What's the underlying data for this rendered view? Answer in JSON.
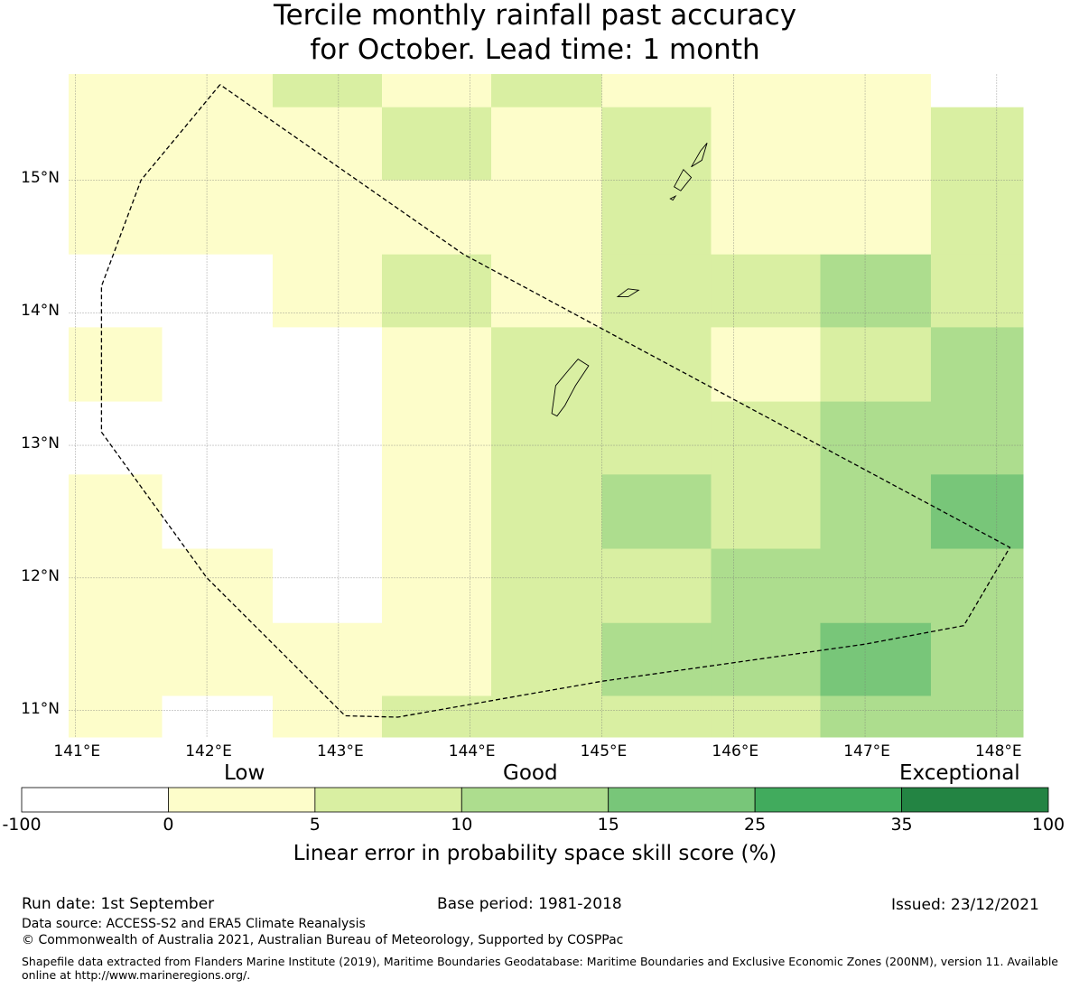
{
  "title": {
    "line1": "Tercile monthly rainfall past accuracy",
    "line2": "for October. Lead time: 1 month"
  },
  "map": {
    "lon_range": [
      140.95,
      148.2
    ],
    "lat_range": [
      10.8,
      15.8
    ],
    "lon_ticks": [
      141,
      142,
      143,
      144,
      145,
      146,
      147,
      148
    ],
    "lon_tick_labels": [
      "141°E",
      "142°E",
      "143°E",
      "144°E",
      "145°E",
      "146°E",
      "147°E",
      "148°E"
    ],
    "lat_ticks": [
      11,
      12,
      13,
      14,
      15
    ],
    "lat_tick_labels": [
      "11°N",
      "12°N",
      "13°N",
      "14°N",
      "15°N"
    ],
    "grid_rows_note": "skill category per cell, rows top (north) to bottom (south), columns west to east",
    "col_edges_lon": [
      140.95,
      141.66,
      142.5,
      143.33,
      144.16,
      145.0,
      145.83,
      146.66,
      147.5,
      148.2
    ],
    "row_edges_lat": [
      15.8,
      15.55,
      15.0,
      14.44,
      13.89,
      13.33,
      12.78,
      12.22,
      11.66,
      11.11,
      10.8
    ],
    "cells": [
      [
        1,
        1,
        2,
        1,
        2,
        1,
        1,
        1,
        0
      ],
      [
        1,
        1,
        1,
        2,
        1,
        2,
        1,
        1,
        2
      ],
      [
        1,
        1,
        1,
        1,
        1,
        2,
        1,
        1,
        2
      ],
      [
        0,
        0,
        1,
        2,
        1,
        2,
        2,
        3,
        2
      ],
      [
        1,
        0,
        0,
        1,
        2,
        2,
        1,
        2,
        3
      ],
      [
        0,
        0,
        0,
        1,
        2,
        2,
        2,
        3,
        3
      ],
      [
        1,
        0,
        0,
        1,
        2,
        3,
        2,
        3,
        4
      ],
      [
        1,
        1,
        0,
        1,
        2,
        2,
        3,
        3,
        3
      ],
      [
        1,
        1,
        1,
        1,
        2,
        3,
        3,
        4,
        3
      ],
      [
        1,
        0,
        1,
        2,
        2,
        2,
        2,
        3,
        3
      ]
    ],
    "eez_boundary": [
      [
        142.1,
        15.72
      ],
      [
        141.5,
        15.0
      ],
      [
        141.2,
        14.2
      ],
      [
        141.2,
        13.1
      ],
      [
        142.0,
        12.0
      ],
      [
        143.05,
        10.96
      ],
      [
        143.45,
        10.95
      ],
      [
        145.0,
        11.22
      ],
      [
        147.0,
        11.5
      ],
      [
        147.75,
        11.64
      ],
      [
        148.1,
        12.23
      ],
      [
        145.0,
        13.88
      ],
      [
        143.95,
        14.44
      ],
      [
        142.1,
        15.72
      ]
    ],
    "islands": [
      [
        [
          144.62,
          13.24
        ],
        [
          144.65,
          13.45
        ],
        [
          144.75,
          13.57
        ],
        [
          144.82,
          13.65
        ],
        [
          144.9,
          13.6
        ],
        [
          144.8,
          13.45
        ],
        [
          144.72,
          13.3
        ],
        [
          144.66,
          13.22
        ],
        [
          144.62,
          13.24
        ]
      ],
      [
        [
          145.12,
          14.12
        ],
        [
          145.2,
          14.18
        ],
        [
          145.28,
          14.17
        ],
        [
          145.2,
          14.12
        ],
        [
          145.12,
          14.12
        ]
      ],
      [
        [
          145.55,
          14.95
        ],
        [
          145.62,
          15.08
        ],
        [
          145.68,
          15.02
        ],
        [
          145.6,
          14.92
        ],
        [
          145.55,
          14.95
        ]
      ],
      [
        [
          145.68,
          15.1
        ],
        [
          145.75,
          15.22
        ],
        [
          145.8,
          15.28
        ],
        [
          145.76,
          15.15
        ],
        [
          145.68,
          15.1
        ]
      ],
      [
        [
          145.52,
          14.86
        ],
        [
          145.56,
          14.88
        ],
        [
          145.54,
          14.85
        ],
        [
          145.52,
          14.86
        ]
      ]
    ]
  },
  "colorbar": {
    "categories": [
      "Low",
      "Good",
      "Exceptional"
    ],
    "tick_labels": [
      "-100",
      "0",
      "5",
      "10",
      "15",
      "25",
      "35",
      "100"
    ],
    "colors": [
      "#ffffff",
      "#fdfdca",
      "#d9efa2",
      "#addd8e",
      "#78c679",
      "#41ab5d",
      "#238443"
    ],
    "label": "Linear error in probability space skill score (%)"
  },
  "footer": {
    "run_date": "Run date: 1st September",
    "base_period": "Base period: 1981-2018",
    "issued": "Issued: 23/12/2021",
    "data_source": "Data source: ACCESS-S2 and ERA5 Climate Reanalysis",
    "copyright": "© Commonwealth of Australia 2021, Australian Bureau of Meteorology, Supported by COSPPac",
    "shapefile": "Shapefile data extracted from Flanders Marine Institute (2019), Maritime Boundaries Geodatabase: Maritime Boundaries and Exclusive Economic Zones (200NM), version 11. Available online at http://www.marineregions.org/."
  }
}
